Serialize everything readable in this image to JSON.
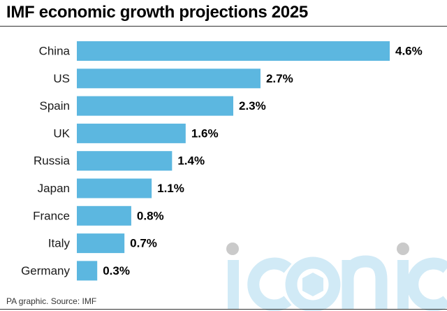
{
  "chart_data": {
    "type": "bar",
    "orientation": "horizontal",
    "title": "IMF economic growth projections 2025",
    "xlabel": "",
    "ylabel": "",
    "categories": [
      "China",
      "US",
      "Spain",
      "UK",
      "Russia",
      "Japan",
      "France",
      "Italy",
      "Germany"
    ],
    "values": [
      4.6,
      2.7,
      2.3,
      1.6,
      1.4,
      1.1,
      0.8,
      0.7,
      0.3
    ],
    "value_labels": [
      "4.6%",
      "2.7%",
      "2.3%",
      "1.6%",
      "1.4%",
      "1.1%",
      "0.8%",
      "0.7%",
      "0.3%"
    ],
    "xlim": [
      0,
      4.6
    ],
    "grid": false,
    "legend": "none",
    "bar_color": "#5cb7e0"
  },
  "source": "PA graphic. Source: IMF",
  "watermark": {
    "text": "iconic",
    "color": "#cfe9f6",
    "dot_color": "#c8c8c8"
  }
}
